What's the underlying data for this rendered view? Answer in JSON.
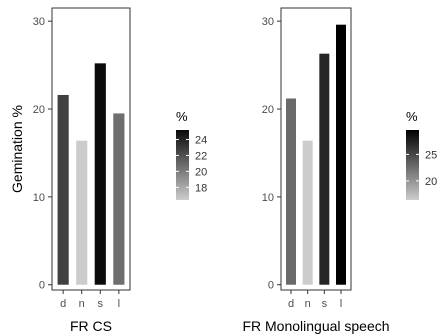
{
  "chart_data": [
    {
      "type": "bar",
      "title": "",
      "xlabel": "FR CS",
      "ylabel": "Gemination %",
      "categories": [
        "d",
        "n",
        "s",
        "l"
      ],
      "values": [
        21.6,
        16.4,
        25.2,
        19.5
      ],
      "ylim": [
        -0.6,
        31.5
      ],
      "yticks": [
        0,
        10,
        20,
        30
      ],
      "bar_colors": [
        "#404040",
        "#cccccc",
        "#0a0a0a",
        "#6e6e6e"
      ],
      "legend": {
        "title": "%",
        "ticks": [
          18,
          20,
          22,
          24
        ],
        "range": [
          16.4,
          25.2
        ]
      },
      "grid": false
    },
    {
      "type": "bar",
      "title": "",
      "xlabel": "FR Monolingual speech",
      "ylabel": "",
      "categories": [
        "d",
        "n",
        "s",
        "l"
      ],
      "values": [
        21.2,
        16.4,
        26.3,
        29.6
      ],
      "ylim": [
        -0.6,
        31.5
      ],
      "yticks": [
        0,
        10,
        20,
        30
      ],
      "bar_colors": [
        "#6a6a6a",
        "#cccccc",
        "#262626",
        "#000000"
      ],
      "legend": {
        "title": "%",
        "ticks": [
          20,
          25
        ],
        "range": [
          16.4,
          29.6
        ]
      },
      "grid": false
    }
  ]
}
